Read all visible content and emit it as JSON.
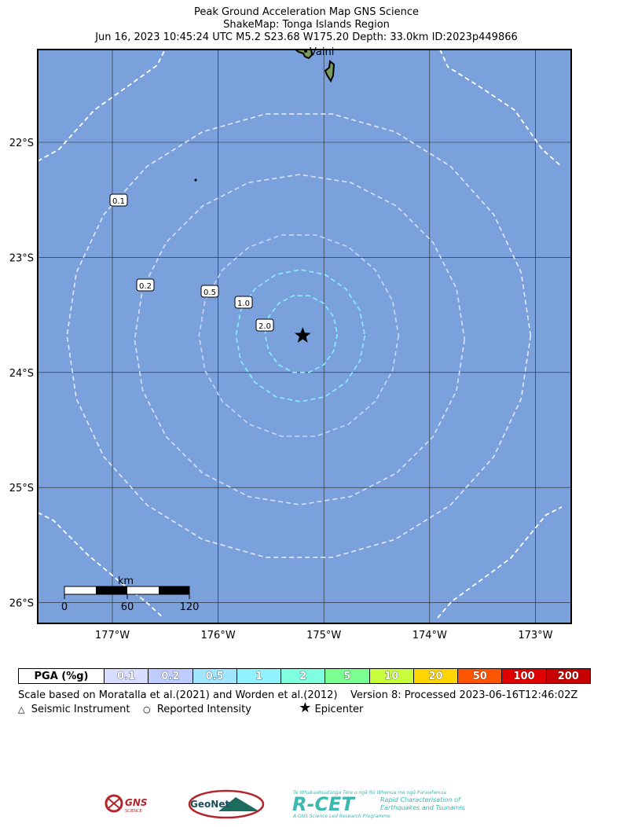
{
  "header": {
    "line1": "Peak Ground Acceleration Map GNS Science",
    "line2": "ShakeMap: Tonga Islands Region",
    "line3": "Jun 16, 2023 10:45:24 UTC M5.2 S23.68 W175.20 Depth: 33.0km ID:2023p449866"
  },
  "map": {
    "ocean_color": "#7ba1dc",
    "land_color": "#7a9a5a",
    "place_label": "Vaini",
    "lat_labels": [
      "22°S",
      "23°S",
      "24°S",
      "25°S",
      "26°S"
    ],
    "lon_labels": [
      "177°W",
      "176°W",
      "175°W",
      "174°W",
      "173°W"
    ],
    "contour_labels": [
      "0.1",
      "0.2",
      "0.5",
      "1.0",
      "2.0"
    ],
    "epicenter": {
      "lat": -23.68,
      "lon": -175.2
    },
    "scale_bar": {
      "unit": "km",
      "ticks": [
        "0",
        "60",
        "120"
      ]
    }
  },
  "legend": {
    "label": "PGA (%g)",
    "items": [
      {
        "value": "0.1",
        "color": "#d8dcff"
      },
      {
        "value": "0.2",
        "color": "#bfccff"
      },
      {
        "value": "0.5",
        "color": "#a0e6ff"
      },
      {
        "value": "1",
        "color": "#90f2ff"
      },
      {
        "value": "2",
        "color": "#80ffe0"
      },
      {
        "value": "5",
        "color": "#7aff93"
      },
      {
        "value": "10",
        "color": "#c8ff3c"
      },
      {
        "value": "20",
        "color": "#ffd500"
      },
      {
        "value": "50",
        "color": "#ff5500"
      },
      {
        "value": "100",
        "color": "#e00000"
      },
      {
        "value": "200",
        "color": "#c80000"
      }
    ]
  },
  "notes": {
    "scale_based": "Scale based on Moratalla et al.(2021) and Worden et al.(2012)",
    "version": "Version 8: Processed 2023-06-16T12:46:02Z",
    "seismic_instrument": "Seismic Instrument",
    "reported_intensity": "Reported Intensity",
    "epicenter": "Epicenter"
  },
  "logos": {
    "gns": "GNS",
    "gns_sub": "SCIENCE",
    "geonet": "GeoNet",
    "rcet": "R-CET",
    "rcet_tag": "Te Whakaahuatanga Tere o ngā Rū Whenua me ngā Parawhenua",
    "rcet_desc1": "Rapid Characterisation of",
    "rcet_desc2": "Earthquakes and Tsunamis",
    "rcet_sub": "A GNS Science Led Research Programme"
  }
}
